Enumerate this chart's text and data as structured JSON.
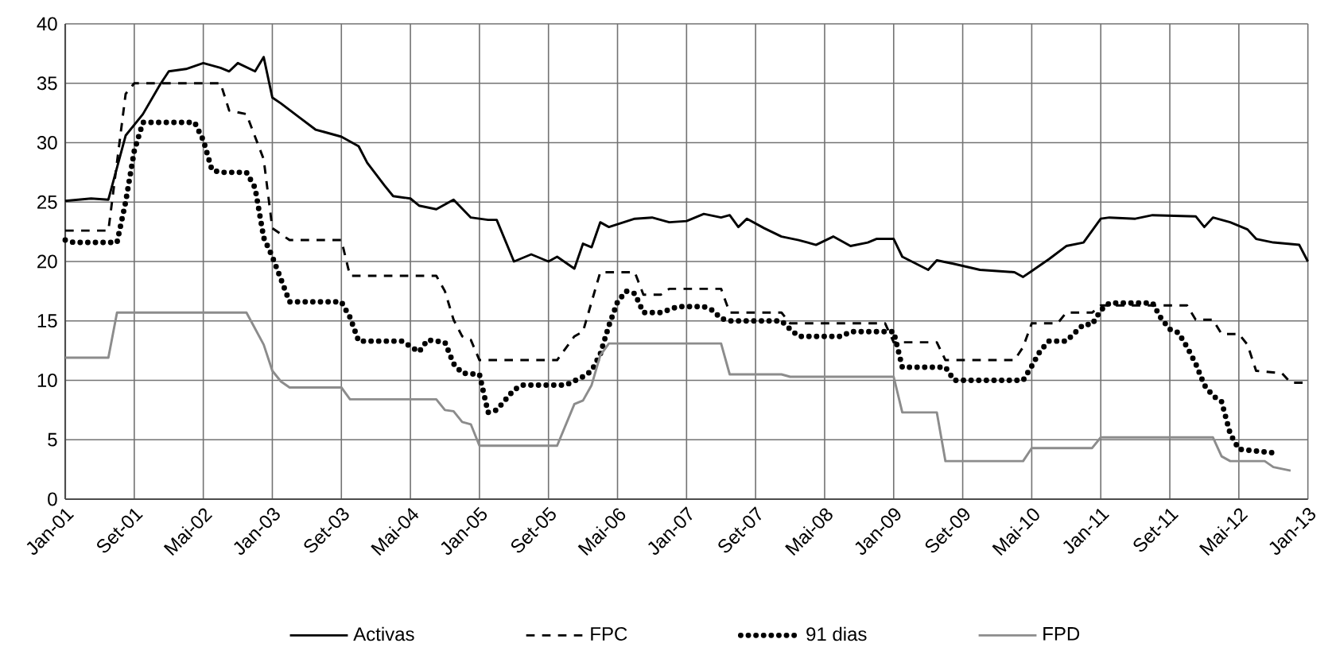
{
  "chart_data": {
    "type": "line",
    "xlim": [
      "2001-01",
      "2013-01"
    ],
    "xticks": [
      {
        "value": "2001-01",
        "label": "Jan-01"
      },
      {
        "value": "2001-09",
        "label": "Set-01"
      },
      {
        "value": "2002-05",
        "label": "Mai-02"
      },
      {
        "value": "2003-01",
        "label": "Jan-03"
      },
      {
        "value": "2003-09",
        "label": "Set-03"
      },
      {
        "value": "2004-05",
        "label": "Mai-04"
      },
      {
        "value": "2005-01",
        "label": "Jan-05"
      },
      {
        "value": "2005-09",
        "label": "Set-05"
      },
      {
        "value": "2006-05",
        "label": "Mai-06"
      },
      {
        "value": "2007-01",
        "label": "Jan-07"
      },
      {
        "value": "2007-09",
        "label": "Set-07"
      },
      {
        "value": "2008-05",
        "label": "Mai-08"
      },
      {
        "value": "2009-01",
        "label": "Jan-09"
      },
      {
        "value": "2009-09",
        "label": "Set-09"
      },
      {
        "value": "2010-05",
        "label": "Mai-10"
      },
      {
        "value": "2011-01",
        "label": "Jan-11"
      },
      {
        "value": "2011-09",
        "label": "Set-11"
      },
      {
        "value": "2012-05",
        "label": "Mai-12"
      },
      {
        "value": "2013-01",
        "label": "Jan-13"
      }
    ],
    "ylim": [
      0,
      40
    ],
    "yticks": [
      0,
      5,
      10,
      15,
      20,
      25,
      30,
      35,
      40
    ],
    "grid": true,
    "legend": "bottom",
    "series": [
      {
        "name": "Activas",
        "color": "#000000",
        "line_style": "solid",
        "x": [
          "2001-01",
          "2001-04",
          "2001-06",
          "2001-08",
          "2001-10",
          "2001-12",
          "2002-01",
          "2002-03",
          "2002-05",
          "2002-07",
          "2002-08",
          "2002-09",
          "2002-11",
          "2002-12",
          "2003-01",
          "2003-02",
          "2003-04",
          "2003-06",
          "2003-07",
          "2003-09",
          "2003-11",
          "2003-12",
          "2004-02",
          "2004-03",
          "2004-05",
          "2004-06",
          "2004-08",
          "2004-10",
          "2004-12",
          "2005-02",
          "2005-03",
          "2005-05",
          "2005-07",
          "2005-09",
          "2005-10",
          "2005-12",
          "2006-01",
          "2006-02",
          "2006-03",
          "2006-04",
          "2006-07",
          "2006-09",
          "2006-11",
          "2007-01",
          "2007-03",
          "2007-05",
          "2007-06",
          "2007-07",
          "2007-08",
          "2007-10",
          "2007-12",
          "2008-02",
          "2008-04",
          "2008-06",
          "2008-08",
          "2008-10",
          "2008-11",
          "2009-01",
          "2009-02",
          "2009-05",
          "2009-06",
          "2009-08",
          "2009-11",
          "2010-03",
          "2010-04",
          "2010-05",
          "2010-07",
          "2010-09",
          "2010-11",
          "2011-01",
          "2011-02",
          "2011-05",
          "2011-07",
          "2011-12",
          "2012-01",
          "2012-02",
          "2012-04",
          "2012-06",
          "2012-07",
          "2012-09",
          "2012-12",
          "2013-01"
        ],
        "values": [
          25.1,
          25.3,
          25.2,
          30.6,
          32.4,
          34.9,
          36.0,
          36.2,
          36.7,
          36.3,
          36.0,
          36.7,
          36.0,
          37.2,
          33.8,
          33.3,
          32.2,
          31.1,
          30.9,
          30.5,
          29.7,
          28.3,
          26.4,
          25.5,
          25.3,
          24.7,
          24.4,
          25.2,
          23.7,
          23.5,
          23.5,
          20.0,
          20.6,
          20.0,
          20.4,
          19.4,
          21.5,
          21.2,
          23.3,
          22.9,
          23.6,
          23.7,
          23.3,
          23.4,
          24.0,
          23.7,
          23.9,
          22.9,
          23.6,
          22.8,
          22.1,
          21.8,
          21.4,
          22.1,
          21.3,
          21.6,
          21.9,
          21.9,
          20.4,
          19.3,
          20.1,
          19.8,
          19.3,
          19.1,
          18.7,
          19.2,
          20.2,
          21.3,
          21.6,
          23.6,
          23.7,
          23.6,
          23.9,
          23.8,
          22.9,
          23.7,
          23.3,
          22.7,
          21.9,
          21.6,
          21.4,
          20.0
        ]
      },
      {
        "name": "FPC",
        "color": "#000000",
        "line_style": "dashed",
        "x": [
          "2001-01",
          "2001-06",
          "2001-08",
          "2001-09",
          "2002-07",
          "2002-08",
          "2002-10",
          "2002-12",
          "2003-01",
          "2003-03",
          "2003-09",
          "2003-10",
          "2004-08",
          "2004-09",
          "2004-10",
          "2004-11",
          "2004-12",
          "2005-01",
          "2005-10",
          "2005-12",
          "2006-01",
          "2006-02",
          "2006-03",
          "2006-07",
          "2006-08",
          "2006-10",
          "2006-11",
          "2007-05",
          "2007-06",
          "2007-12",
          "2008-01",
          "2008-12",
          "2009-01",
          "2009-06",
          "2009-07",
          "2010-03",
          "2010-04",
          "2010-05",
          "2010-08",
          "2010-09",
          "2010-12",
          "2011-01",
          "2011-11",
          "2011-12",
          "2012-02",
          "2012-03",
          "2012-05",
          "2012-06",
          "2012-07",
          "2012-10",
          "2012-11",
          "2013-01"
        ],
        "values": [
          22.6,
          22.6,
          34.1,
          35.0,
          35.0,
          32.7,
          32.4,
          28.6,
          22.8,
          21.8,
          21.8,
          18.8,
          18.8,
          17.5,
          15.1,
          13.7,
          13.4,
          11.7,
          11.7,
          13.7,
          14.1,
          16.6,
          19.1,
          19.1,
          17.2,
          17.2,
          17.7,
          17.7,
          15.7,
          15.7,
          14.8,
          14.8,
          13.2,
          13.2,
          11.7,
          11.7,
          12.8,
          14.8,
          14.8,
          15.7,
          15.7,
          16.3,
          16.3,
          15.1,
          15.1,
          13.9,
          13.9,
          13.0,
          10.8,
          10.6,
          9.8,
          9.8
        ]
      },
      {
        "name": "91 dias",
        "color": "#000000",
        "line_style": "dotted",
        "x": [
          "2001-01",
          "2001-02",
          "2001-07",
          "2001-08",
          "2001-09",
          "2001-10",
          "2002-04",
          "2002-05",
          "2002-06",
          "2002-07",
          "2002-10",
          "2002-11",
          "2002-12",
          "2003-01",
          "2003-02",
          "2003-03",
          "2003-09",
          "2003-10",
          "2003-11",
          "2004-04",
          "2004-06",
          "2004-07",
          "2004-09",
          "2004-10",
          "2004-11",
          "2005-01",
          "2005-02",
          "2005-03",
          "2005-05",
          "2005-06",
          "2005-11",
          "2006-01",
          "2006-02",
          "2006-03",
          "2006-04",
          "2006-05",
          "2006-06",
          "2006-07",
          "2006-08",
          "2006-10",
          "2006-12",
          "2007-03",
          "2007-04",
          "2007-05",
          "2007-06",
          "2007-12",
          "2008-01",
          "2008-02",
          "2008-07",
          "2008-08",
          "2009-01",
          "2009-02",
          "2009-07",
          "2009-08",
          "2010-04",
          "2010-05",
          "2010-06",
          "2010-07",
          "2010-09",
          "2010-10",
          "2010-11",
          "2010-12",
          "2011-01",
          "2011-02",
          "2011-07",
          "2011-08",
          "2011-09",
          "2011-10",
          "2011-11",
          "2011-12",
          "2012-01",
          "2012-02",
          "2012-03",
          "2012-04",
          "2012-05",
          "2012-09"
        ],
        "values": [
          21.8,
          21.6,
          21.6,
          25.0,
          29.3,
          31.7,
          31.7,
          30.2,
          27.7,
          27.5,
          27.5,
          26.2,
          22.0,
          20.4,
          18.5,
          16.6,
          16.6,
          15.3,
          13.3,
          13.3,
          12.4,
          13.4,
          13.2,
          11.4,
          10.6,
          10.5,
          7.3,
          7.5,
          9.2,
          9.6,
          9.6,
          10.3,
          10.8,
          12.2,
          14.6,
          16.6,
          17.5,
          17.3,
          15.7,
          15.7,
          16.2,
          16.2,
          15.9,
          15.2,
          15.0,
          15.0,
          14.3,
          13.7,
          13.7,
          14.1,
          14.1,
          11.1,
          11.1,
          10.0,
          10.0,
          11.2,
          12.5,
          13.3,
          13.3,
          14.0,
          14.7,
          14.7,
          15.9,
          16.5,
          16.5,
          15.2,
          14.3,
          14.0,
          12.8,
          11.4,
          9.6,
          8.7,
          8.2,
          5.5,
          4.2,
          3.9
        ]
      },
      {
        "name": "FPD",
        "color": "#8c8c8c",
        "line_style": "solid",
        "x": [
          "2001-01",
          "2001-06",
          "2001-07",
          "2002-10",
          "2002-12",
          "2003-01",
          "2003-02",
          "2003-03",
          "2003-09",
          "2003-10",
          "2004-08",
          "2004-09",
          "2004-10",
          "2004-11",
          "2004-12",
          "2005-01",
          "2005-10",
          "2005-12",
          "2006-01",
          "2006-02",
          "2006-03",
          "2006-04",
          "2007-05",
          "2007-06",
          "2007-12",
          "2008-01",
          "2009-01",
          "2009-02",
          "2009-06",
          "2009-07",
          "2010-04",
          "2010-05",
          "2010-12",
          "2011-01",
          "2012-02",
          "2012-03",
          "2012-04",
          "2012-08",
          "2012-09",
          "2012-11"
        ],
        "values": [
          11.9,
          11.9,
          15.7,
          15.7,
          13.0,
          10.8,
          9.9,
          9.4,
          9.4,
          8.4,
          8.4,
          7.5,
          7.4,
          6.5,
          6.3,
          4.5,
          4.5,
          8.0,
          8.3,
          9.6,
          12.1,
          13.1,
          13.1,
          10.5,
          10.5,
          10.3,
          10.3,
          7.3,
          7.3,
          3.2,
          3.2,
          4.3,
          4.3,
          5.2,
          5.2,
          3.6,
          3.2,
          3.2,
          2.7,
          2.4
        ]
      }
    ]
  }
}
